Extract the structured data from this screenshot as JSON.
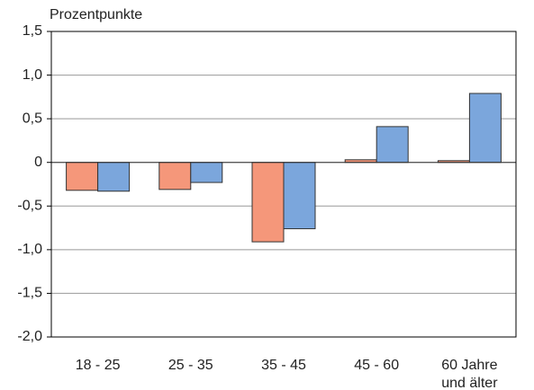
{
  "chart_data": {
    "type": "bar",
    "y_axis_label": "Prozentpunkte",
    "categories": [
      "18 - 25",
      "25 - 35",
      "35 - 45",
      "45 - 60",
      "60 Jahre und älter"
    ],
    "series": [
      {
        "color": "#f5977a",
        "values": [
          -0.32,
          -0.31,
          -0.91,
          0.03,
          0.02
        ]
      },
      {
        "color": "#7ba6dc",
        "values": [
          -0.33,
          -0.23,
          -0.76,
          0.41,
          0.79
        ]
      }
    ],
    "ylim": [
      -2.0,
      1.5
    ],
    "yticks": [
      {
        "value": 1.5,
        "label": "1,5"
      },
      {
        "value": 1.0,
        "label": "1,0"
      },
      {
        "value": 0.5,
        "label": "0,5"
      },
      0,
      {
        "value": -0.5,
        "label": "-0,5"
      },
      {
        "value": -1.0,
        "label": "-1,0"
      },
      {
        "value": -1.5,
        "label": "-1,5"
      },
      {
        "value": -2.0,
        "label": "-2,0"
      }
    ],
    "grid": true
  }
}
